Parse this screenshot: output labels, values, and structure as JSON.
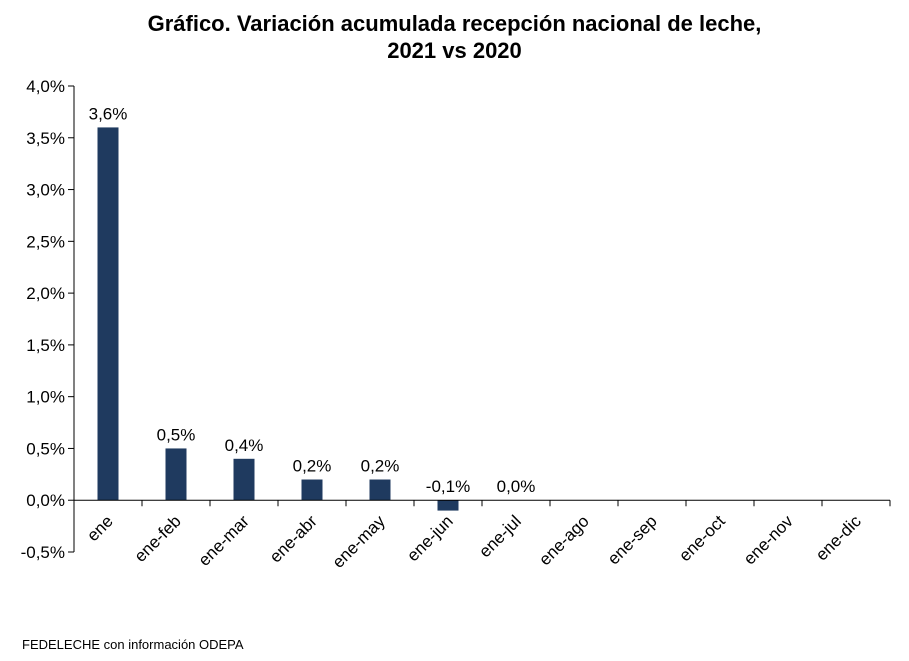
{
  "chart_data": {
    "type": "bar",
    "title_lines": [
      "Gráfico. Variación acumulada recepción nacional de leche,",
      "2021 vs 2020"
    ],
    "categories": [
      "ene",
      "ene-feb",
      "ene-mar",
      "ene-abr",
      "ene-may",
      "ene-jun",
      "ene-jul",
      "ene-ago",
      "ene-sep",
      "ene-oct",
      "ene-nov",
      "ene-dic"
    ],
    "values": [
      3.6,
      0.5,
      0.4,
      0.2,
      0.2,
      -0.1,
      0.0,
      null,
      null,
      null,
      null,
      null
    ],
    "data_labels": [
      "3,6%",
      "0,5%",
      "0,4%",
      "0,2%",
      "0,2%",
      "-0,1%",
      "0,0%",
      "",
      "",
      "",
      "",
      ""
    ],
    "y_ticks": [
      4.0,
      3.5,
      3.0,
      2.5,
      2.0,
      1.5,
      1.0,
      0.5,
      0.0,
      -0.5
    ],
    "y_tick_labels": [
      "4,0%",
      "3,5%",
      "3,0%",
      "2,5%",
      "2,0%",
      "1,5%",
      "1,0%",
      "0,5%",
      "0,0%",
      "-0,5%"
    ],
    "ylim": [
      -0.5,
      4.0
    ],
    "grid": false,
    "legend": "none",
    "bar_color": "#1f3a5f"
  },
  "source_note": "FEDELECHE  con información  ODEPA"
}
